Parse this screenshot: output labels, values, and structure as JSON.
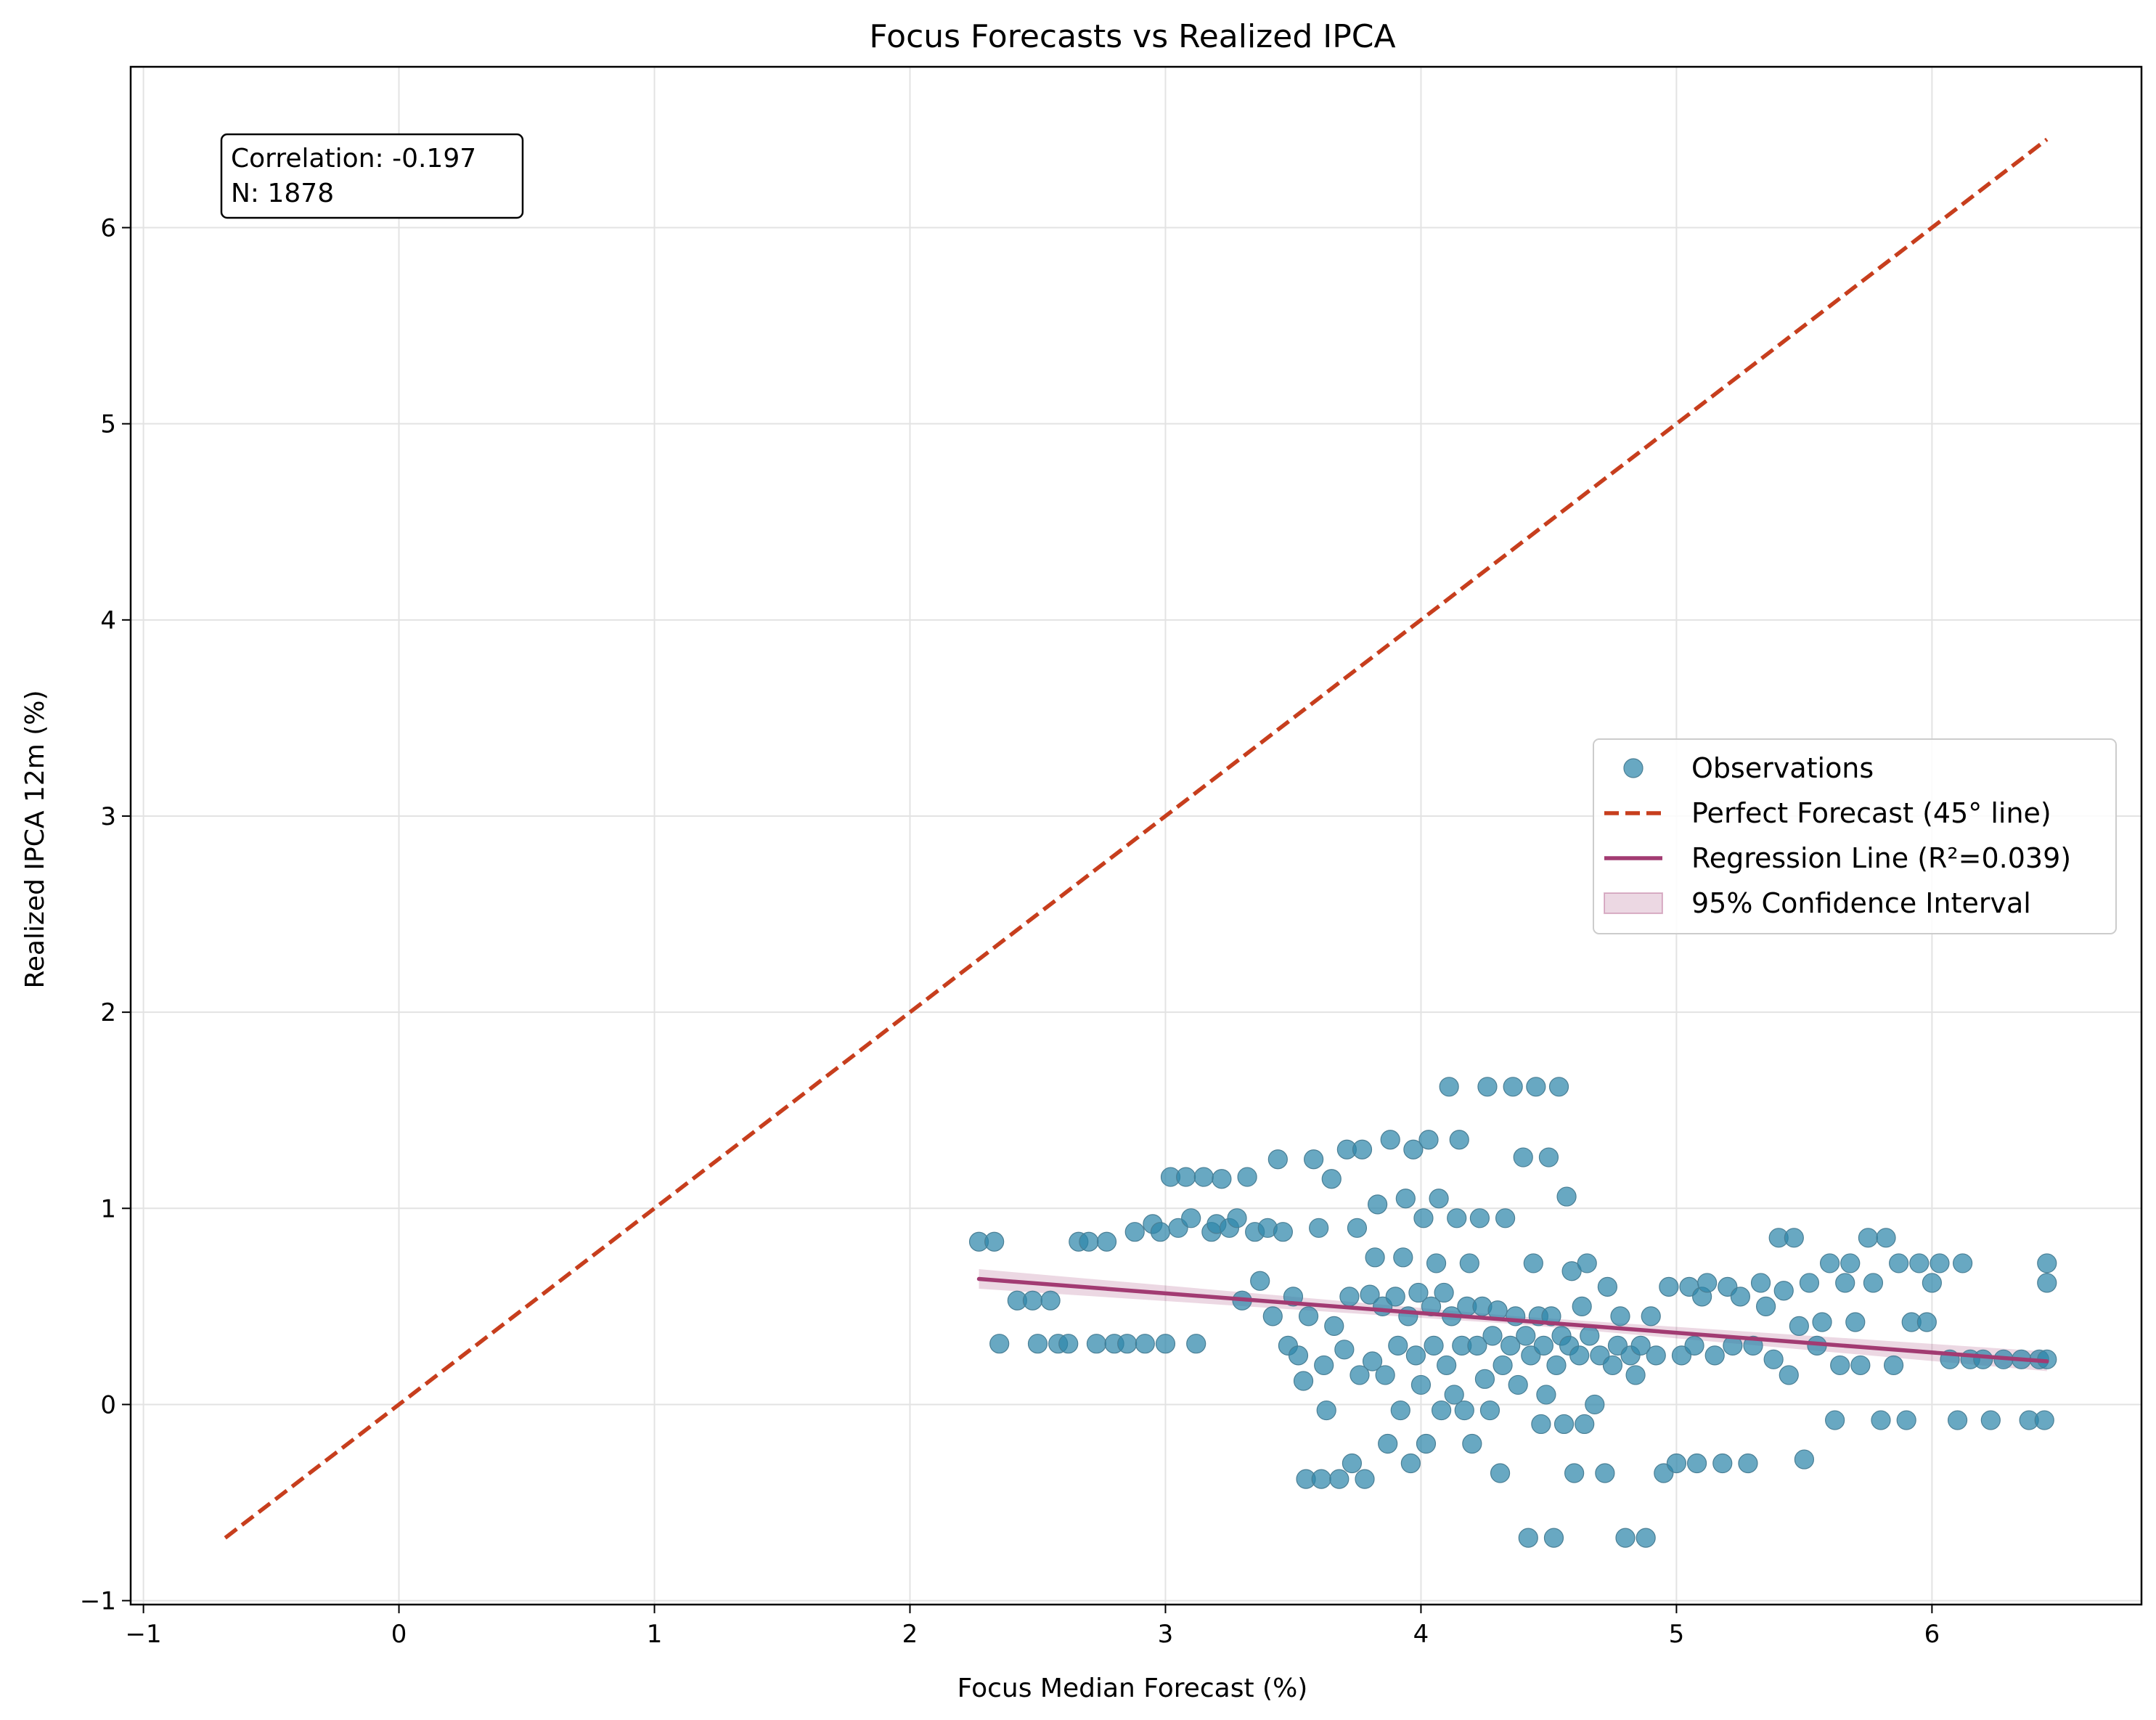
{
  "chart_data": {
    "type": "scatter",
    "title": "Focus Forecasts vs Realized IPCA",
    "xlabel": "Focus Median Forecast (%)",
    "ylabel": "Realized IPCA 12m (%)",
    "xlim": [
      -1.05,
      6.82
    ],
    "ylim": [
      -1.02,
      6.82
    ],
    "xticks": [
      -1,
      0,
      1,
      2,
      3,
      4,
      5,
      6
    ],
    "xtick_labels": [
      "−1",
      "0",
      "1",
      "2",
      "3",
      "4",
      "5",
      "6"
    ],
    "yticks": [
      -1,
      0,
      1,
      2,
      3,
      4,
      5,
      6
    ],
    "ytick_labels": [
      "−1",
      "0",
      "1",
      "2",
      "3",
      "4",
      "5",
      "6"
    ],
    "grid": true,
    "legend_position": "center-right",
    "annotation": [
      "Correlation: -0.197",
      "N: 1878"
    ],
    "colors": {
      "observations": "#2e86ab",
      "perfect_line": "#c73e1d",
      "regression_line": "#a23b72",
      "ci_fill": "#a23b72"
    },
    "series": [
      {
        "name": "Observations",
        "kind": "scatter",
        "points": [
          [
            2.27,
            0.83
          ],
          [
            2.33,
            0.83
          ],
          [
            2.35,
            0.31
          ],
          [
            2.42,
            0.53
          ],
          [
            2.48,
            0.53
          ],
          [
            2.5,
            0.31
          ],
          [
            2.55,
            0.53
          ],
          [
            2.58,
            0.31
          ],
          [
            2.62,
            0.31
          ],
          [
            2.66,
            0.83
          ],
          [
            2.7,
            0.83
          ],
          [
            2.73,
            0.31
          ],
          [
            2.77,
            0.83
          ],
          [
            2.8,
            0.31
          ],
          [
            2.85,
            0.31
          ],
          [
            2.88,
            0.88
          ],
          [
            2.92,
            0.31
          ],
          [
            2.95,
            0.92
          ],
          [
            2.98,
            0.88
          ],
          [
            3.0,
            0.31
          ],
          [
            3.02,
            1.16
          ],
          [
            3.05,
            0.9
          ],
          [
            3.08,
            1.16
          ],
          [
            3.1,
            0.95
          ],
          [
            3.12,
            0.31
          ],
          [
            3.15,
            1.16
          ],
          [
            3.18,
            0.88
          ],
          [
            3.2,
            0.92
          ],
          [
            3.22,
            1.15
          ],
          [
            3.25,
            0.9
          ],
          [
            3.28,
            0.95
          ],
          [
            3.3,
            0.53
          ],
          [
            3.32,
            1.16
          ],
          [
            3.35,
            0.88
          ],
          [
            3.37,
            0.63
          ],
          [
            3.4,
            0.9
          ],
          [
            3.42,
            0.45
          ],
          [
            3.44,
            1.25
          ],
          [
            3.46,
            0.88
          ],
          [
            3.48,
            0.3
          ],
          [
            3.5,
            0.55
          ],
          [
            3.52,
            0.25
          ],
          [
            3.54,
            0.12
          ],
          [
            3.55,
            -0.38
          ],
          [
            3.56,
            0.45
          ],
          [
            3.58,
            1.25
          ],
          [
            3.6,
            0.9
          ],
          [
            3.61,
            -0.38
          ],
          [
            3.62,
            0.2
          ],
          [
            3.63,
            -0.03
          ],
          [
            3.65,
            1.15
          ],
          [
            3.66,
            0.4
          ],
          [
            3.68,
            -0.38
          ],
          [
            3.7,
            0.28
          ],
          [
            3.71,
            1.3
          ],
          [
            3.72,
            0.55
          ],
          [
            3.73,
            -0.3
          ],
          [
            3.75,
            0.9
          ],
          [
            3.76,
            0.15
          ],
          [
            3.77,
            1.3
          ],
          [
            3.78,
            -0.38
          ],
          [
            3.8,
            0.56
          ],
          [
            3.81,
            0.22
          ],
          [
            3.82,
            0.75
          ],
          [
            3.83,
            1.02
          ],
          [
            3.85,
            0.5
          ],
          [
            3.86,
            0.15
          ],
          [
            3.87,
            -0.2
          ],
          [
            3.88,
            1.35
          ],
          [
            3.9,
            0.55
          ],
          [
            3.91,
            0.3
          ],
          [
            3.92,
            -0.03
          ],
          [
            3.93,
            0.75
          ],
          [
            3.94,
            1.05
          ],
          [
            3.95,
            0.45
          ],
          [
            3.96,
            -0.3
          ],
          [
            3.97,
            1.3
          ],
          [
            3.98,
            0.25
          ],
          [
            3.99,
            0.57
          ],
          [
            4.0,
            0.1
          ],
          [
            4.01,
            0.95
          ],
          [
            4.02,
            -0.2
          ],
          [
            4.03,
            1.35
          ],
          [
            4.04,
            0.5
          ],
          [
            4.05,
            0.3
          ],
          [
            4.06,
            0.72
          ],
          [
            4.07,
            1.05
          ],
          [
            4.08,
            -0.03
          ],
          [
            4.09,
            0.57
          ],
          [
            4.1,
            0.2
          ],
          [
            4.11,
            1.62
          ],
          [
            4.12,
            0.45
          ],
          [
            4.13,
            0.05
          ],
          [
            4.14,
            0.95
          ],
          [
            4.15,
            1.35
          ],
          [
            4.16,
            0.3
          ],
          [
            4.17,
            -0.03
          ],
          [
            4.18,
            0.5
          ],
          [
            4.19,
            0.72
          ],
          [
            4.2,
            -0.2
          ],
          [
            4.22,
            0.3
          ],
          [
            4.23,
            0.95
          ],
          [
            4.24,
            0.5
          ],
          [
            4.25,
            0.13
          ],
          [
            4.26,
            1.62
          ],
          [
            4.27,
            -0.03
          ],
          [
            4.28,
            0.35
          ],
          [
            4.3,
            0.48
          ],
          [
            4.31,
            -0.35
          ],
          [
            4.32,
            0.2
          ],
          [
            4.33,
            0.95
          ],
          [
            4.35,
            0.3
          ],
          [
            4.36,
            1.62
          ],
          [
            4.37,
            0.45
          ],
          [
            4.38,
            0.1
          ],
          [
            4.4,
            1.26
          ],
          [
            4.41,
            0.35
          ],
          [
            4.42,
            -0.68
          ],
          [
            4.43,
            0.25
          ],
          [
            4.44,
            0.72
          ],
          [
            4.45,
            1.62
          ],
          [
            4.46,
            0.45
          ],
          [
            4.47,
            -0.1
          ],
          [
            4.48,
            0.3
          ],
          [
            4.49,
            0.05
          ],
          [
            4.5,
            1.26
          ],
          [
            4.51,
            0.45
          ],
          [
            4.52,
            -0.68
          ],
          [
            4.53,
            0.2
          ],
          [
            4.54,
            1.62
          ],
          [
            4.55,
            0.35
          ],
          [
            4.56,
            -0.1
          ],
          [
            4.57,
            1.06
          ],
          [
            4.58,
            0.3
          ],
          [
            4.59,
            0.68
          ],
          [
            4.6,
            -0.35
          ],
          [
            4.62,
            0.25
          ],
          [
            4.63,
            0.5
          ],
          [
            4.64,
            -0.1
          ],
          [
            4.65,
            0.72
          ],
          [
            4.66,
            0.35
          ],
          [
            4.68,
            0.0
          ],
          [
            4.7,
            0.25
          ],
          [
            4.72,
            -0.35
          ],
          [
            4.73,
            0.6
          ],
          [
            4.75,
            0.2
          ],
          [
            4.77,
            0.3
          ],
          [
            4.78,
            0.45
          ],
          [
            4.8,
            -0.68
          ],
          [
            4.82,
            0.25
          ],
          [
            4.84,
            0.15
          ],
          [
            4.86,
            0.3
          ],
          [
            4.88,
            -0.68
          ],
          [
            4.9,
            0.45
          ],
          [
            4.92,
            0.25
          ],
          [
            4.95,
            -0.35
          ],
          [
            4.97,
            0.6
          ],
          [
            5.0,
            -0.3
          ],
          [
            5.02,
            0.25
          ],
          [
            5.05,
            0.6
          ],
          [
            5.07,
            0.3
          ],
          [
            5.08,
            -0.3
          ],
          [
            5.1,
            0.55
          ],
          [
            5.12,
            0.62
          ],
          [
            5.15,
            0.25
          ],
          [
            5.18,
            -0.3
          ],
          [
            5.2,
            0.6
          ],
          [
            5.22,
            0.3
          ],
          [
            5.25,
            0.55
          ],
          [
            5.28,
            -0.3
          ],
          [
            5.3,
            0.3
          ],
          [
            5.33,
            0.62
          ],
          [
            5.35,
            0.5
          ],
          [
            5.38,
            0.23
          ],
          [
            5.4,
            0.85
          ],
          [
            5.42,
            0.58
          ],
          [
            5.44,
            0.15
          ],
          [
            5.46,
            0.85
          ],
          [
            5.48,
            0.4
          ],
          [
            5.5,
            -0.28
          ],
          [
            5.52,
            0.62
          ],
          [
            5.55,
            0.3
          ],
          [
            5.57,
            0.42
          ],
          [
            5.6,
            0.72
          ],
          [
            5.62,
            -0.08
          ],
          [
            5.64,
            0.2
          ],
          [
            5.66,
            0.62
          ],
          [
            5.68,
            0.72
          ],
          [
            5.7,
            0.42
          ],
          [
            5.72,
            0.2
          ],
          [
            5.75,
            0.85
          ],
          [
            5.77,
            0.62
          ],
          [
            5.8,
            -0.08
          ],
          [
            5.82,
            0.85
          ],
          [
            5.85,
            0.2
          ],
          [
            5.87,
            0.72
          ],
          [
            5.9,
            -0.08
          ],
          [
            5.92,
            0.42
          ],
          [
            5.95,
            0.72
          ],
          [
            5.98,
            0.42
          ],
          [
            6.0,
            0.62
          ],
          [
            6.03,
            0.72
          ],
          [
            6.07,
            0.23
          ],
          [
            6.1,
            -0.08
          ],
          [
            6.12,
            0.72
          ],
          [
            6.15,
            0.23
          ],
          [
            6.2,
            0.23
          ],
          [
            6.23,
            -0.08
          ],
          [
            6.28,
            0.23
          ],
          [
            6.35,
            0.23
          ],
          [
            6.38,
            -0.08
          ],
          [
            6.42,
            0.23
          ],
          [
            6.44,
            -0.08
          ],
          [
            6.45,
            0.72
          ],
          [
            6.45,
            0.62
          ],
          [
            6.45,
            0.23
          ]
        ]
      },
      {
        "name": "Perfect Forecast (45° line)",
        "kind": "line",
        "x": [
          -0.68,
          6.45
        ],
        "y": [
          -0.68,
          6.45
        ]
      },
      {
        "name": "Regression Line (R²=0.039)",
        "kind": "line",
        "x": [
          2.27,
          6.45
        ],
        "y": [
          0.64,
          0.22
        ]
      },
      {
        "name": "95% Confidence Interval",
        "kind": "band",
        "x": [
          2.27,
          4.37,
          6.45
        ],
        "lower": [
          0.59,
          0.41,
          0.17
        ],
        "upper": [
          0.69,
          0.45,
          0.27
        ]
      }
    ]
  }
}
